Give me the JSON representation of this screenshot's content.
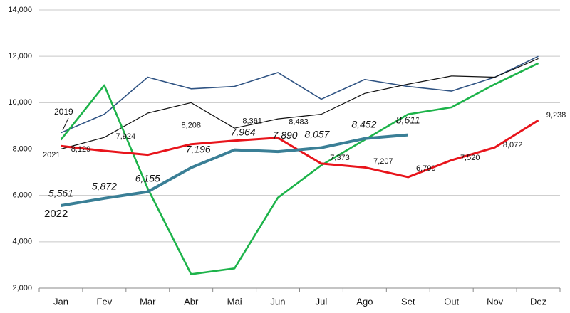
{
  "chart_data": {
    "type": "line",
    "categories": [
      "Jan",
      "Fev",
      "Mar",
      "Abr",
      "Mai",
      "Jun",
      "Jul",
      "Ago",
      "Set",
      "Out",
      "Nov",
      "Dez"
    ],
    "ylim": [
      2000,
      14000
    ],
    "yticks": [
      {
        "value": 2000,
        "label": "2,000"
      },
      {
        "value": 4000,
        "label": "4,000"
      },
      {
        "value": 6000,
        "label": "6,000"
      },
      {
        "value": 8000,
        "label": "8,000"
      },
      {
        "value": 10000,
        "label": "10,000"
      },
      {
        "value": 12000,
        "label": "12,000"
      },
      {
        "value": 14000,
        "label": "14,000"
      }
    ],
    "grid": true,
    "series": [
      {
        "name": "2019",
        "color": "#2f5383",
        "values": [
          8700,
          9500,
          11100,
          10600,
          10700,
          11300,
          10150,
          11000,
          10700,
          10500,
          11100,
          12000
        ]
      },
      {
        "name": "2021",
        "color": "#111111",
        "values": [
          8000,
          8500,
          9550,
          10000,
          8900,
          9300,
          9500,
          10400,
          10800,
          11150,
          11100,
          11900
        ]
      },
      {
        "color": "#1db34a",
        "values": [
          8400,
          10750,
          6300,
          2600,
          2850,
          5900,
          7300,
          8400,
          9500,
          9800,
          10800,
          11700
        ]
      },
      {
        "color": "#e8141b",
        "values": [
          8129,
          7924,
          7750,
          8208,
          8361,
          8483,
          7373,
          7207,
          6790,
          7520,
          8072,
          9238
        ],
        "value_labels": [
          "8,129",
          "7,924",
          null,
          "8,208",
          "8,361",
          "8,483",
          "7,373",
          "7,207",
          "6,790",
          "7,520",
          "8,072",
          "9,238"
        ]
      },
      {
        "name": "2022",
        "color": "#3a7f96",
        "values": [
          5561,
          5872,
          6155,
          7196,
          7964,
          7890,
          8057,
          8452,
          8611,
          null,
          null,
          null
        ],
        "value_labels": [
          "5,561",
          "5,872",
          "6,155",
          "7,196",
          "7,964",
          "7,890",
          "8,057",
          "8,452",
          "8,611",
          null,
          null,
          null
        ]
      }
    ]
  }
}
